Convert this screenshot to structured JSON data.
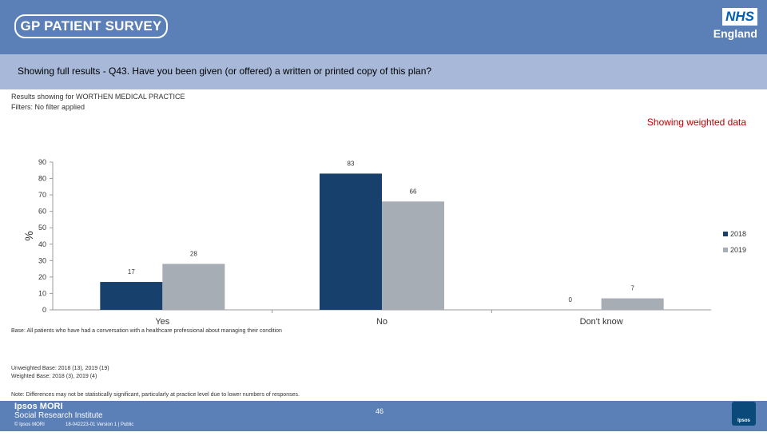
{
  "header": {
    "survey_logo": "GP PATIENT SURVEY",
    "nhs_logo": "NHS",
    "nhs_sub": "England"
  },
  "question": "Showing full results - Q43.  Have you been given (or offered) a written or printed copy of this plan?",
  "meta": {
    "results_for": "Results showing for WORTHEN MEDICAL PRACTICE",
    "filters": "Filters: No filter applied"
  },
  "weighted_label": "Showing weighted data",
  "chart_data": {
    "type": "bar",
    "categories": [
      "Yes",
      "No",
      "Don't know"
    ],
    "series": [
      {
        "name": "2018",
        "values": [
          17,
          83,
          0
        ],
        "color": "#17406d"
      },
      {
        "name": "2019",
        "values": [
          28,
          66,
          7
        ],
        "color": "#a6adb4"
      }
    ],
    "ylabel": "%",
    "ylim": [
      0,
      90
    ],
    "yticks": [
      0,
      10,
      20,
      30,
      40,
      50,
      60,
      70,
      80,
      90
    ],
    "legend": "right",
    "grid": false
  },
  "notes": {
    "base": "Base: All patients who have had a conversation with a healthcare professional about managing their condition",
    "unweighted": "Unweighted Base: 2018 (13), 2019 (19)",
    "weighted": "Weighted Base: 2018 (3), 2019 (4)",
    "disclaimer": "Note: Differences may not be statistically significant, particularly at practice level due to lower numbers of responses."
  },
  "footer": {
    "ipsos_name": "Ipsos MORI",
    "ipsos_sub": "Social Research Institute",
    "copyright": "© Ipsos MORI",
    "reference": "18-042223-01 Version 1 | Public",
    "page_number": "46",
    "ipsos_logo": "Ipsos"
  }
}
